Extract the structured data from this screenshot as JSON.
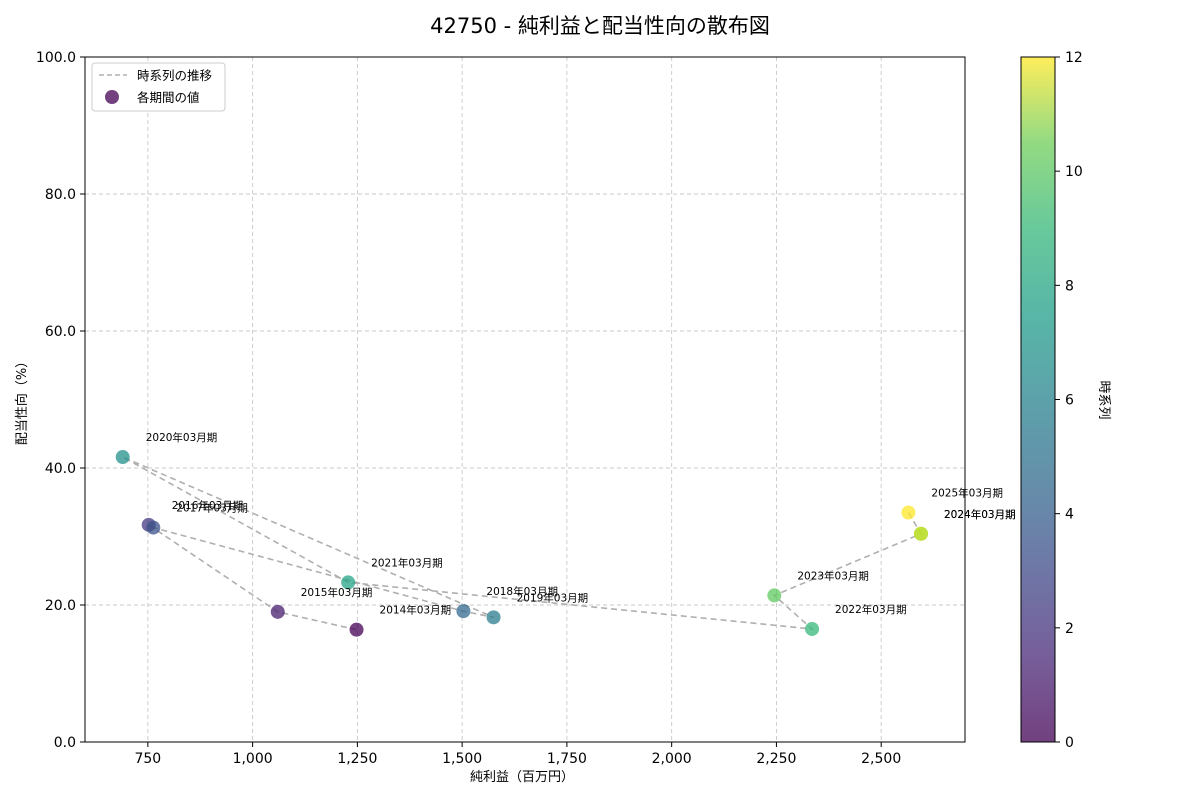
{
  "chart_data": {
    "type": "scatter",
    "title": "42750 - 純利益と配当性向の散布図",
    "xlabel": "純利益（百万円）",
    "ylabel": "配当性向（%）",
    "colorbar_label": "時系列",
    "xlim": [
      600,
      2700
    ],
    "ylim": [
      0,
      100
    ],
    "x_ticks": [
      750,
      1000,
      1250,
      1500,
      1750,
      2000,
      2250,
      2500
    ],
    "x_tick_labels": [
      "750",
      "1,000",
      "1,250",
      "1,500",
      "1,750",
      "2,000",
      "2,250",
      "2,500"
    ],
    "y_ticks": [
      0,
      20,
      40,
      60,
      80,
      100
    ],
    "y_tick_labels": [
      "0.0",
      "20.0",
      "40.0",
      "60.0",
      "80.0",
      "100.0"
    ],
    "colorbar_ticks": [
      0,
      2,
      4,
      6,
      8,
      10,
      12
    ],
    "colorbar_tick_labels": [
      "0",
      "2",
      "4",
      "6",
      "8",
      "10",
      "12"
    ],
    "grid": true,
    "legend": {
      "placement": "top-left",
      "entries": [
        "時系列の推移",
        "各期間の値"
      ]
    },
    "points": [
      {
        "label": "2014年03月期",
        "x": 1248,
        "y": 16.4,
        "t": 0
      },
      {
        "label": "2015年03月期",
        "x": 1060,
        "y": 19.0,
        "t": 1
      },
      {
        "label": "2016年03月期",
        "x": 752,
        "y": 31.7,
        "t": 2
      },
      {
        "label": "2017年03月期",
        "x": 763,
        "y": 31.3,
        "t": 3
      },
      {
        "label": "2018年03月期",
        "x": 1503,
        "y": 19.1,
        "t": 4
      },
      {
        "label": "2019年03月期",
        "x": 1575,
        "y": 18.2,
        "t": 5
      },
      {
        "label": "2020年03月期",
        "x": 690,
        "y": 41.6,
        "t": 6
      },
      {
        "label": "2021年03月期",
        "x": 1228,
        "y": 23.3,
        "t": 7
      },
      {
        "label": "2022年03月期",
        "x": 2335,
        "y": 16.5,
        "t": 8
      },
      {
        "label": "2023年03月期",
        "x": 2245,
        "y": 21.4,
        "t": 9
      },
      {
        "label": "2024年03月期",
        "x": 2595,
        "y": 30.4,
        "t": 10
      },
      {
        "label": "2024年03月期",
        "x": 2595,
        "y": 30.4,
        "t": 11
      },
      {
        "label": "2025年03月期",
        "x": 2565,
        "y": 33.5,
        "t": 12
      }
    ]
  }
}
